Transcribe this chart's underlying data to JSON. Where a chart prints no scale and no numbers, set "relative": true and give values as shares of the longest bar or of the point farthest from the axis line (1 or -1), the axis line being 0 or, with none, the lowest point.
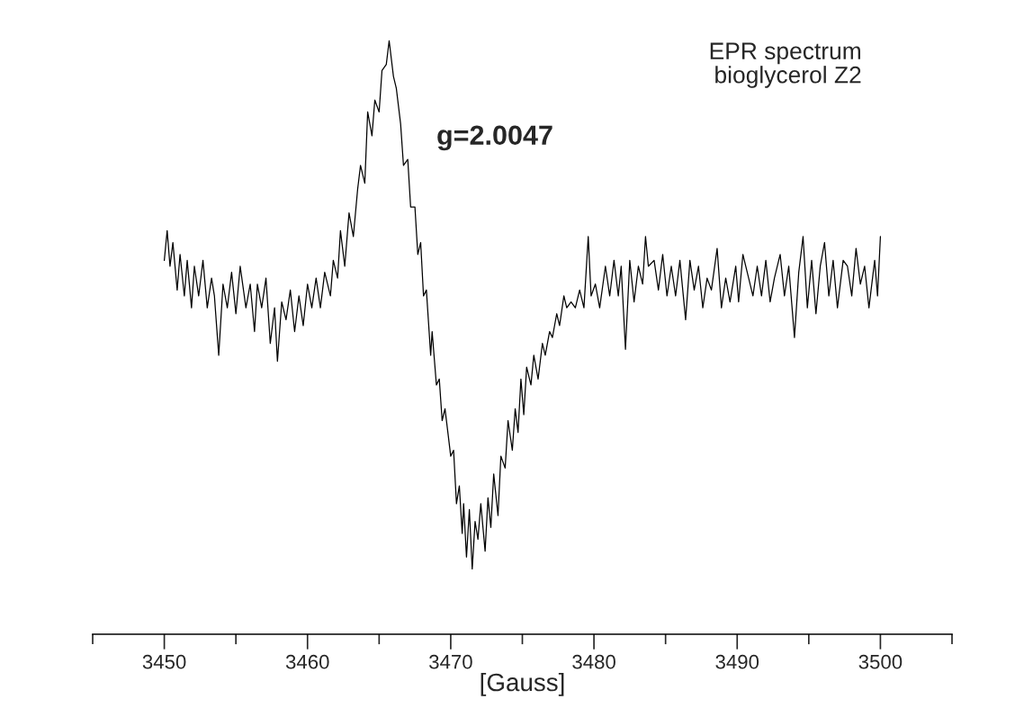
{
  "chart_data": {
    "type": "line",
    "title": "EPR spectrum\nbioglycerol Z2",
    "xlabel": "[Gauss]",
    "annotations": [
      "g=2.0047"
    ],
    "relative": true,
    "xlim": [
      3445,
      3505
    ],
    "xticks": [
      {
        "value": 3445,
        "label": null
      },
      3450,
      {
        "value": 3455,
        "label": null
      },
      3460,
      {
        "value": 3465,
        "label": null
      },
      3470,
      {
        "value": 3475,
        "label": null
      },
      3480,
      {
        "value": 3485,
        "label": null
      },
      3490,
      {
        "value": 3495,
        "label": null
      },
      3500,
      {
        "value": 3505,
        "label": null
      }
    ],
    "series": [
      {
        "color": "#000000",
        "x": [
          3450.0,
          3450.2,
          3450.4,
          3450.6,
          3450.9,
          3451.1,
          3451.4,
          3451.6,
          3451.9,
          3452.1,
          3452.4,
          3452.7,
          3453.0,
          3453.3,
          3453.5,
          3453.8,
          3454.1,
          3454.4,
          3454.7,
          3455.0,
          3455.3,
          3455.7,
          3456.0,
          3456.3,
          3456.5,
          3456.8,
          3457.1,
          3457.4,
          3457.7,
          3457.9,
          3458.2,
          3458.5,
          3458.8,
          3459.1,
          3459.4,
          3459.7,
          3460.0,
          3460.3,
          3460.6,
          3460.9,
          3461.2,
          3461.6,
          3461.8,
          3462.1,
          3462.3,
          3462.6,
          3462.9,
          3463.2,
          3463.5,
          3463.7,
          3464.0,
          3464.2,
          3464.5,
          3464.7,
          3465.0,
          3465.2,
          3465.5,
          3465.7,
          3466.0,
          3466.2,
          3466.5,
          3466.7,
          3467.0,
          3467.2,
          3467.5,
          3467.7,
          3467.9,
          3468.1,
          3468.3,
          3468.6,
          3468.7,
          3469.0,
          3469.2,
          3469.4,
          3469.6,
          3469.8,
          3470.0,
          3470.2,
          3470.4,
          3470.6,
          3470.8,
          3470.9,
          3471.1,
          3471.3,
          3471.5,
          3471.7,
          3471.9,
          3472.1,
          3472.4,
          3472.6,
          3472.8,
          3473.0,
          3473.3,
          3473.5,
          3473.8,
          3474.0,
          3474.3,
          3474.5,
          3474.7,
          3474.9,
          3475.1,
          3475.3,
          3475.6,
          3475.8,
          3476.1,
          3476.4,
          3476.6,
          3476.9,
          3477.1,
          3477.4,
          3477.6,
          3477.9,
          3478.1,
          3478.4,
          3478.7,
          3479.0,
          3479.3,
          3479.6,
          3479.8,
          3480.1,
          3480.4,
          3480.8,
          3481.1,
          3481.4,
          3481.7,
          3481.9,
          3482.2,
          3482.5,
          3482.8,
          3483.1,
          3483.4,
          3483.6,
          3483.8,
          3484.2,
          3484.5,
          3484.8,
          3485.1,
          3485.4,
          3485.7,
          3486.0,
          3486.4,
          3486.7,
          3487.0,
          3487.3,
          3487.6,
          3487.9,
          3488.2,
          3488.6,
          3488.9,
          3489.2,
          3489.5,
          3489.9,
          3490.1,
          3490.4,
          3490.8,
          3491.1,
          3491.4,
          3491.7,
          3492.0,
          3492.3,
          3492.6,
          3493.0,
          3493.3,
          3493.6,
          3494.0,
          3494.3,
          3494.6,
          3494.9,
          3495.2,
          3495.5,
          3495.8,
          3496.1,
          3496.4,
          3496.7,
          3497.0,
          3497.4,
          3497.7,
          3498.0,
          3498.3,
          3498.6,
          3498.9,
          3499.2,
          3499.6,
          3499.8,
          3500.0
        ],
        "values": [
          0.63,
          0.68,
          0.62,
          0.66,
          0.58,
          0.64,
          0.57,
          0.63,
          0.55,
          0.62,
          0.57,
          0.63,
          0.55,
          0.6,
          0.57,
          0.47,
          0.59,
          0.55,
          0.61,
          0.54,
          0.62,
          0.55,
          0.59,
          0.51,
          0.59,
          0.55,
          0.6,
          0.49,
          0.55,
          0.46,
          0.56,
          0.53,
          0.58,
          0.51,
          0.57,
          0.52,
          0.59,
          0.55,
          0.6,
          0.55,
          0.61,
          0.57,
          0.63,
          0.6,
          0.68,
          0.62,
          0.71,
          0.67,
          0.75,
          0.79,
          0.76,
          0.88,
          0.84,
          0.9,
          0.88,
          0.95,
          0.96,
          1.0,
          0.94,
          0.92,
          0.86,
          0.79,
          0.8,
          0.72,
          0.72,
          0.64,
          0.66,
          0.57,
          0.58,
          0.47,
          0.51,
          0.42,
          0.43,
          0.36,
          0.38,
          0.34,
          0.3,
          0.31,
          0.22,
          0.25,
          0.17,
          0.22,
          0.13,
          0.21,
          0.11,
          0.19,
          0.16,
          0.22,
          0.14,
          0.23,
          0.18,
          0.27,
          0.2,
          0.3,
          0.28,
          0.36,
          0.31,
          0.38,
          0.34,
          0.43,
          0.37,
          0.45,
          0.42,
          0.47,
          0.43,
          0.49,
          0.47,
          0.51,
          0.5,
          0.54,
          0.52,
          0.57,
          0.55,
          0.56,
          0.55,
          0.58,
          0.55,
          0.67,
          0.57,
          0.59,
          0.55,
          0.62,
          0.57,
          0.63,
          0.57,
          0.62,
          0.48,
          0.63,
          0.56,
          0.62,
          0.59,
          0.67,
          0.62,
          0.63,
          0.58,
          0.64,
          0.57,
          0.62,
          0.57,
          0.63,
          0.53,
          0.63,
          0.58,
          0.62,
          0.55,
          0.6,
          0.58,
          0.65,
          0.55,
          0.6,
          0.56,
          0.62,
          0.56,
          0.64,
          0.6,
          0.57,
          0.62,
          0.57,
          0.63,
          0.56,
          0.6,
          0.64,
          0.57,
          0.62,
          0.5,
          0.61,
          0.67,
          0.55,
          0.63,
          0.54,
          0.62,
          0.66,
          0.57,
          0.63,
          0.55,
          0.63,
          0.62,
          0.57,
          0.65,
          0.59,
          0.62,
          0.55,
          0.63,
          0.57,
          0.67
        ]
      }
    ]
  }
}
